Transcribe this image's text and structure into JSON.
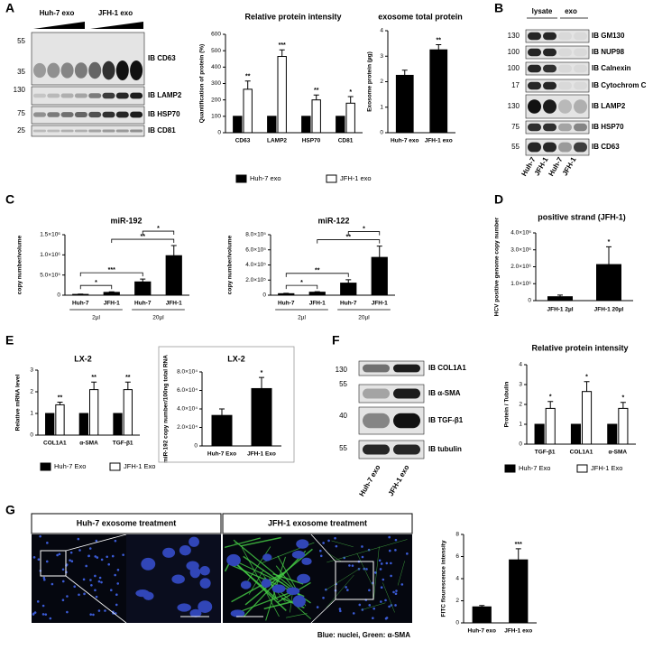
{
  "panel_letters": [
    "A",
    "B",
    "C",
    "D",
    "E",
    "F",
    "G"
  ],
  "blots": {
    "a": {
      "headers": [
        "Huh-7 exo",
        "JFH-1 exo"
      ],
      "markers": [
        55,
        35,
        130,
        75,
        25
      ],
      "labels": [
        "IB CD63",
        "IB LAMP2",
        "IB HSP70",
        "IB CD81"
      ]
    },
    "b": {
      "headers": [
        "lysate",
        "exo"
      ],
      "markers": [
        130,
        100,
        100,
        17,
        130,
        75,
        55
      ],
      "labels": [
        "IB GM130",
        "IB NUP98",
        "IB Calnexin",
        "IB Cytochrom C",
        "IB LAMP2",
        "IB HSP70",
        "IB CD63"
      ],
      "lanes": [
        "Huh-7",
        "JFH-1",
        "Huh-7",
        "JFH-1"
      ]
    },
    "f": {
      "markers": [
        130,
        55,
        40,
        55
      ],
      "labels": [
        "IB COL1A1",
        "IB α-SMA",
        "IB TGF-β1",
        "IB tubulin"
      ],
      "lanes": [
        "Huh-7 exo",
        "JFH-1 exo"
      ]
    }
  },
  "images": {
    "headers": [
      "Huh-7 exosome treatment",
      "JFH-1 exosome treatment"
    ],
    "caption": "Blue: nuclei, Green: α-SMA"
  },
  "chart_data": [
    {
      "type": "bar",
      "title": "Relative protein intensity",
      "ylabel": "Quantification of protein (%)",
      "categories": [
        "CD63",
        "LAMP2",
        "HSP70",
        "CD81"
      ],
      "series": [
        {
          "name": "Huh-7 exo",
          "color": "#000000",
          "values": [
            100,
            100,
            100,
            100
          ]
        },
        {
          "name": "JFH-1 exo",
          "color": "#ffffff",
          "values": [
            265,
            465,
            200,
            180
          ],
          "errors": [
            50,
            40,
            30,
            40
          ],
          "annotations": [
            "**",
            "***",
            "**",
            "*"
          ]
        }
      ],
      "ylim": [
        0,
        600
      ],
      "yticks": [
        0,
        100,
        200,
        300,
        400,
        500,
        600
      ]
    },
    {
      "type": "bar",
      "title": "exosome total protein",
      "ylabel": "Exosome protein (µg)",
      "categories": [
        "Huh-7 exo",
        "JFH-1 exo"
      ],
      "values": [
        2.25,
        3.25
      ],
      "errors": [
        0.2,
        0.2
      ],
      "annotations": [
        null,
        "**"
      ],
      "color": "#000000",
      "ylim": [
        0,
        4
      ],
      "yticks": [
        0,
        1,
        2,
        3,
        4
      ]
    },
    {
      "type": "bar",
      "title": "miR-192",
      "ylabel": "copy number/volume",
      "categories": [
        "Huh-7",
        "JFH-1",
        "Huh-7",
        "JFH-1"
      ],
      "groups": [
        "2µl",
        "20µl"
      ],
      "values": [
        20000,
        70000,
        330000,
        980000
      ],
      "errors": [
        8000,
        15000,
        70000,
        250000
      ],
      "brackets": [
        "*",
        "***",
        "**",
        "*"
      ],
      "color": "#000000",
      "ylim": [
        0,
        1500000
      ],
      "yticks": [
        0,
        {
          "value": 500000,
          "label": "5.0×10⁵"
        },
        {
          "value": 1000000,
          "label": "1.0×10⁶"
        },
        {
          "value": 1500000,
          "label": "1.5×10⁶"
        }
      ]
    },
    {
      "type": "bar",
      "title": "miR-122",
      "ylabel": "copy number/volume",
      "categories": [
        "Huh-7",
        "JFH-1",
        "Huh-7",
        "JFH-1"
      ],
      "groups": [
        "2µl",
        "20µl"
      ],
      "values": [
        20000,
        40000,
        160000,
        500000
      ],
      "errors": [
        5000,
        6000,
        45000,
        150000
      ],
      "brackets": [
        "*",
        "**",
        "**",
        "*"
      ],
      "color": "#000000",
      "ylim": [
        0,
        800000
      ],
      "yticks": [
        0,
        {
          "value": 200000,
          "label": "2.0×10⁵"
        },
        {
          "value": 400000,
          "label": "4.0×10⁵"
        },
        {
          "value": 600000,
          "label": "6.0×10⁵"
        },
        {
          "value": 800000,
          "label": "8.0×10⁵"
        }
      ]
    },
    {
      "type": "bar",
      "title": "positive strand (JFH-1)",
      "ylabel": "HCV positive genome copy number",
      "categories": [
        "JFH-1 2µl",
        "JFH-1 20µl"
      ],
      "values": [
        230000,
        2130000
      ],
      "errors": [
        100000,
        1050000
      ],
      "annotations": [
        null,
        "*"
      ],
      "color": "#000000",
      "ylim": [
        0,
        4000000
      ],
      "yticks": [
        0,
        {
          "value": 1000000,
          "label": "1.0×10⁶"
        },
        {
          "value": 2000000,
          "label": "2.0×10⁶"
        },
        {
          "value": 3000000,
          "label": "3.0×10⁶"
        },
        {
          "value": 4000000,
          "label": "4.0×10⁶"
        }
      ]
    },
    {
      "type": "bar",
      "title": "LX-2",
      "ylabel": "Relative  mRNA level",
      "categories": [
        "COL1A1",
        "α-SMA",
        "TGF-β1"
      ],
      "series": [
        {
          "name": "Huh-7 Exo",
          "color": "#000000",
          "values": [
            1,
            1,
            1
          ]
        },
        {
          "name": "JFH-1 Exo",
          "color": "#ffffff",
          "values": [
            1.4,
            2.1,
            2.1
          ],
          "errors": [
            0.12,
            0.35,
            0.35
          ],
          "annotations": [
            "**",
            "**",
            "**"
          ]
        }
      ],
      "ylim": [
        0,
        3
      ],
      "yticks": [
        0,
        1,
        2,
        3
      ]
    },
    {
      "type": "bar",
      "title": "LX-2",
      "ylabel": "miR-192 copy number/100ng total RNA",
      "categories": [
        "Huh-7 Exo",
        "JFH-1 Exo"
      ],
      "values": [
        33000,
        62000
      ],
      "errors": [
        7000,
        12000
      ],
      "annotations": [
        null,
        "*"
      ],
      "color": "#000000",
      "ylim": [
        0,
        80000
      ],
      "yticks": [
        0,
        {
          "value": 20000,
          "label": "2.0×10⁴"
        },
        {
          "value": 40000,
          "label": "4.0×10⁴"
        },
        {
          "value": 60000,
          "label": "6.0×10⁴"
        },
        {
          "value": 80000,
          "label": "8.0×10⁴"
        }
      ]
    },
    {
      "type": "bar",
      "title": "Relative protein intensity",
      "ylabel": "Protein / Tubulin",
      "categories": [
        "TGF-β1",
        "COL1A1",
        "α-SMA"
      ],
      "series": [
        {
          "name": "Huh-7 Exo",
          "color": "#000000",
          "values": [
            1,
            1,
            1
          ]
        },
        {
          "name": "JFH-1 Exo",
          "color": "#ffffff",
          "values": [
            1.8,
            2.65,
            1.8
          ],
          "errors": [
            0.35,
            0.5,
            0.3
          ],
          "annotations": [
            "*",
            "*",
            "*"
          ]
        }
      ],
      "ylim": [
        0,
        4
      ],
      "yticks": [
        0,
        1,
        2,
        3,
        4
      ]
    },
    {
      "type": "bar",
      "ylabel": "FITC flourescence intensity",
      "categories": [
        "Huh-7 exo",
        "JFH-1 exo"
      ],
      "values": [
        1.45,
        5.7
      ],
      "errors": [
        0.12,
        1.0
      ],
      "annotations": [
        null,
        "***"
      ],
      "color": "#000000",
      "ylim": [
        0,
        8
      ],
      "yticks": [
        0,
        2,
        4,
        6,
        8
      ]
    }
  ]
}
